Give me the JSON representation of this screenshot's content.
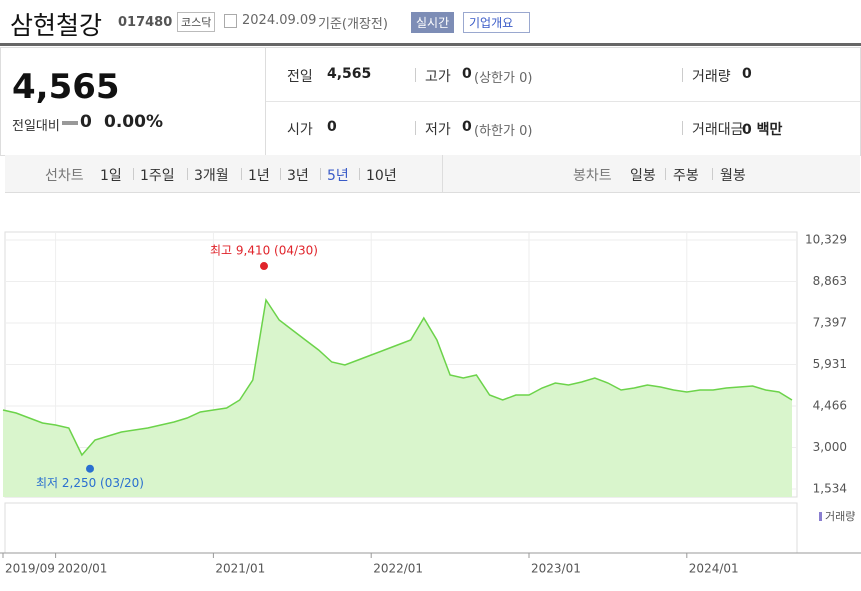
{
  "header": {
    "title": "삼현철강",
    "code": "017480",
    "market": "코스닥",
    "date": "2024.09.09",
    "basis": "기준(개장전)",
    "realtime": "실시간",
    "overview": "기업개요"
  },
  "summary": {
    "price": "4,565",
    "change_label": "전일대비",
    "change": "0",
    "change_rate": "0.00%",
    "items": [
      {
        "label": "전일",
        "value": "4,565"
      },
      {
        "label": "고가",
        "value": "0",
        "note": "(상한가 0)"
      },
      {
        "label": "거래량",
        "value": "0"
      },
      {
        "label": "시가",
        "value": "0"
      },
      {
        "label": "저가",
        "value": "0",
        "note": "(하한가 0)"
      },
      {
        "label": "거래대금",
        "value": "0 백만"
      }
    ]
  },
  "tabs": {
    "line_label": "선차트",
    "line_periods": [
      "1일",
      "1주일",
      "3개월",
      "1년",
      "3년",
      "5년",
      "10년"
    ],
    "active": "5년",
    "candle_label": "봉차트",
    "candle_periods": [
      "일봉",
      "주봉",
      "월봉"
    ]
  },
  "chart_data": {
    "type": "area",
    "color": "#6cd34a",
    "fill": "#d9f5cc",
    "grid": true,
    "categories": [
      "2019/09",
      null,
      null,
      null,
      "2020/01",
      null,
      null,
      null,
      null,
      null,
      null,
      null,
      null,
      null,
      null,
      null,
      "2021/01",
      null,
      null,
      null,
      null,
      null,
      null,
      null,
      null,
      null,
      null,
      null,
      "2022/01",
      null,
      null,
      null,
      null,
      null,
      null,
      null,
      null,
      null,
      null,
      null,
      "2023/01",
      null,
      null,
      null,
      null,
      null,
      null,
      null,
      null,
      null,
      null,
      null,
      "2024/01",
      null,
      null,
      null,
      null,
      null,
      null,
      null,
      null
    ],
    "values": [
      4324,
      4218,
      4042,
      3865,
      3795,
      3688,
      2735,
      3265,
      3406,
      3547,
      3618,
      3688,
      3795,
      3900,
      4042,
      4254,
      4324,
      4395,
      4677,
      5384,
      8210,
      7503,
      7150,
      6797,
      6443,
      6020,
      5914,
      6090,
      6267,
      6443,
      6620,
      6797,
      7574,
      6797,
      5560,
      5455,
      5560,
      4854,
      4677,
      4854,
      4854,
      5101,
      5278,
      5207,
      5313,
      5455,
      5278,
      5031,
      5101,
      5207,
      5136,
      5031,
      4960,
      5031,
      5031,
      5101,
      5136,
      5172,
      5031,
      4960,
      4677
    ],
    "ylim": [
      1534,
      10329
    ],
    "yticks": [
      {
        "value": 1534,
        "label": "1,534"
      },
      {
        "value": 3000,
        "label": "3,000"
      },
      {
        "value": 4466,
        "label": "4,466"
      },
      {
        "value": 5931,
        "label": "5,931"
      },
      {
        "value": 7397,
        "label": "7,397"
      },
      {
        "value": 8863,
        "label": "8,863"
      },
      {
        "value": 10329,
        "label": "10,329"
      }
    ],
    "annotations": [
      {
        "text": "최고 9,410 (04/30)",
        "value": 9410,
        "color": "#e0242b"
      },
      {
        "text": "최저 2,250 (03/20)",
        "value": 2250,
        "color": "#2a6fd0"
      }
    ],
    "volume_legend": "거래량"
  }
}
